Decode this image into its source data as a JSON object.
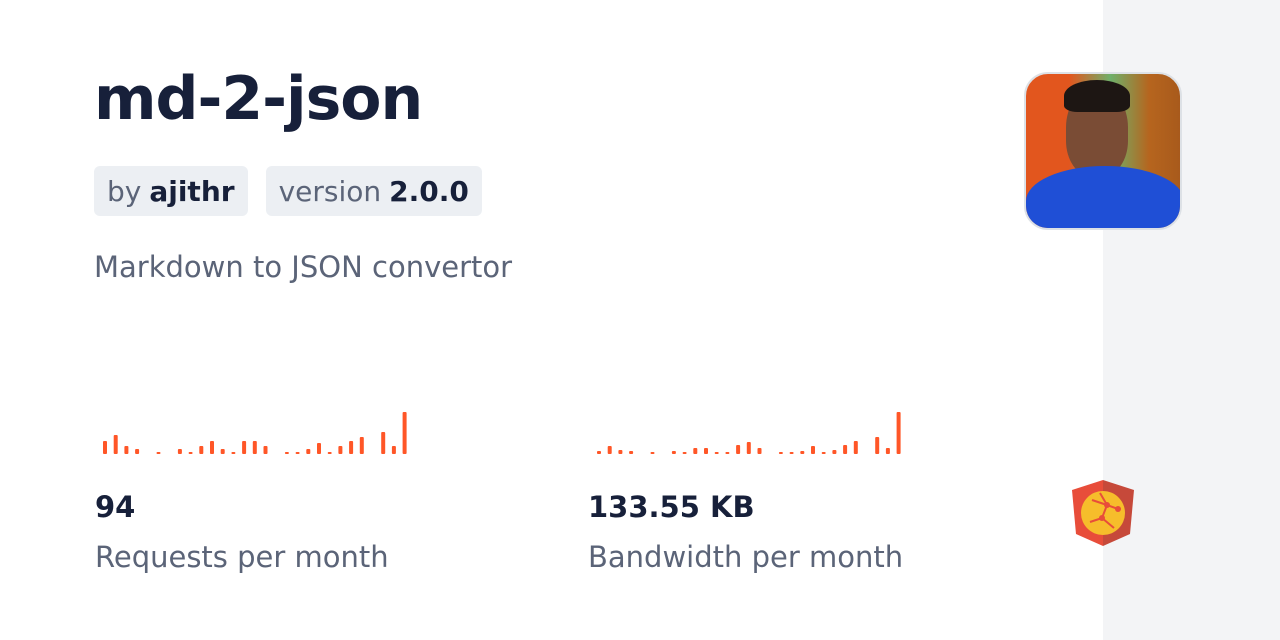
{
  "package": {
    "name": "md-2-json",
    "by_label": "by",
    "author": "ajithr",
    "version_label": "version",
    "version": "2.0.0",
    "description": "Markdown to JSON convertor"
  },
  "avatar": {
    "alt": "author-avatar"
  },
  "colors": {
    "accent": "#ff5627",
    "text": "#17203a",
    "muted": "#5b6478",
    "badge_bg": "#eceff3",
    "side_bg": "#f3f4f6"
  },
  "stats": [
    {
      "value": "94",
      "label": "Requests per month"
    },
    {
      "value": "133.55 KB",
      "label": "Bandwidth per month"
    }
  ],
  "chart_data": [
    {
      "type": "bar",
      "values": [
        13,
        19,
        8,
        5,
        0,
        2,
        0,
        5,
        2,
        8,
        13,
        5,
        2,
        13,
        13,
        8,
        0,
        2,
        2,
        5,
        11,
        2,
        8,
        13,
        17,
        0,
        22,
        8,
        42
      ]
    },
    {
      "type": "bar",
      "values": [
        3,
        8,
        4,
        3,
        0,
        1,
        0,
        3,
        1,
        6,
        6,
        1,
        1,
        9,
        12,
        6,
        0,
        1,
        1,
        3,
        8,
        1,
        4,
        9,
        13,
        0,
        17,
        6,
        42
      ]
    }
  ],
  "logo": {
    "icon": "jsdelivr-logo-icon"
  }
}
